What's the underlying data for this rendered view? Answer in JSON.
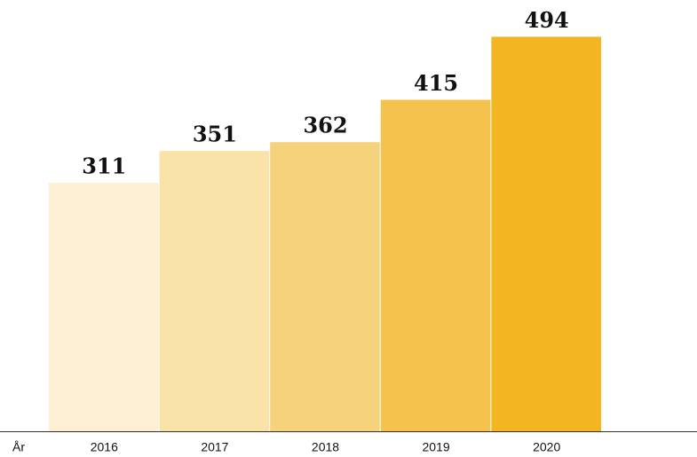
{
  "chart_data": {
    "type": "bar",
    "x_label": "År",
    "categories": [
      "2016",
      "2017",
      "2018",
      "2019",
      "2020"
    ],
    "values": [
      311,
      351,
      362,
      415,
      494
    ],
    "colors": [
      "#fcefd3",
      "#fae3a9",
      "#f7d27c",
      "#f5c24e",
      "#f4b522"
    ],
    "ylim": [
      0,
      540
    ]
  }
}
